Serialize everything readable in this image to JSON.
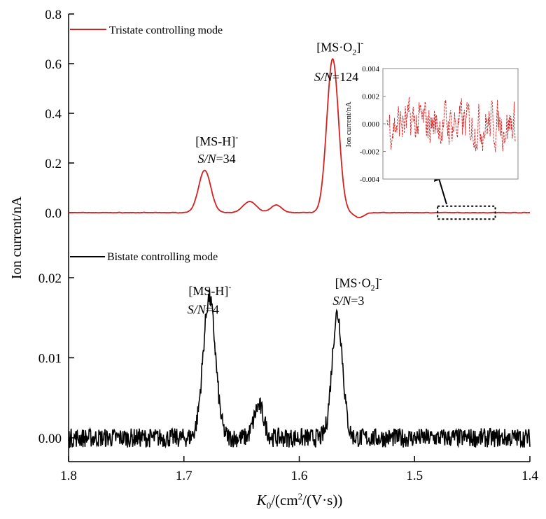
{
  "chart_data": {
    "type": "line",
    "x_axis": {
      "label": "K0/(cm2/(V·s))",
      "ticks": [
        "1.8",
        "1.7",
        "1.6",
        "1.5",
        "1.4"
      ],
      "tick_values": [
        1.8,
        1.7,
        1.6,
        1.5,
        1.4
      ],
      "xlim": [
        1.8,
        1.4
      ],
      "reversed": true
    },
    "y_label": "Ion current/nA",
    "grid": false,
    "panels": [
      {
        "id": "top",
        "legend": "Tristate controlling mode",
        "color": "#d42020",
        "ylim": [
          -0.02,
          0.8
        ],
        "y_ticks": [
          "0.0",
          "0.2",
          "0.4",
          "0.6",
          "0.8"
        ],
        "y_tick_values": [
          0.0,
          0.2,
          0.4,
          0.6,
          0.8
        ],
        "peaks": [
          {
            "x": 1.682,
            "y": 0.17,
            "width": 0.0075
          },
          {
            "x": 1.643,
            "y": 0.045,
            "width": 0.008
          },
          {
            "x": 1.62,
            "y": 0.03,
            "width": 0.007
          },
          {
            "x": 1.571,
            "y": 0.62,
            "width": 0.0072
          },
          {
            "x": 1.548,
            "y": -0.02,
            "width": 0.006
          }
        ],
        "noise": 0.002,
        "annotations": [
          {
            "text": "[MS-H]",
            "sup": "-",
            "x": 1.69,
            "y": 0.27
          },
          {
            "text_italic": "S/N",
            "text_rest": "=34",
            "x": 1.688,
            "y": 0.2
          },
          {
            "text": "[MS·O2]",
            "sup": "-",
            "x": 1.585,
            "y": 0.65
          },
          {
            "text_italic": "S/N",
            "text_rest": "=124",
            "x": 1.587,
            "y": 0.53
          }
        ]
      },
      {
        "id": "bottom",
        "legend": "Bistate controlling mode",
        "color": "#000000",
        "ylim": [
          -0.003,
          0.024
        ],
        "y_ticks": [
          "0.00",
          "0.01",
          "0.02"
        ],
        "y_tick_values": [
          0.0,
          0.01,
          0.02
        ],
        "peaks": [
          {
            "x": 1.678,
            "y": 0.0175,
            "width": 0.0075
          },
          {
            "x": 1.635,
            "y": 0.004,
            "width": 0.006
          },
          {
            "x": 1.567,
            "y": 0.0155,
            "width": 0.0065
          }
        ],
        "noise": 0.0012,
        "annotations": [
          {
            "text": "[MS-H]",
            "sup": "-",
            "x": 1.696,
            "y": 0.0178
          },
          {
            "text_italic": "S/N",
            "text_rest": "=4",
            "x": 1.697,
            "y": 0.0155
          },
          {
            "text": "[MS·O2]",
            "sup": "-",
            "x": 1.569,
            "y": 0.0188
          },
          {
            "text_italic": "S/N",
            "text_rest": "=3",
            "x": 1.571,
            "y": 0.0166
          }
        ]
      }
    ],
    "inset": {
      "ylabel": "Ion current/nA",
      "ylim": [
        -0.004,
        0.004
      ],
      "y_ticks": [
        "0.004",
        "0.002",
        "0.000",
        "-0.002",
        "-0.004"
      ],
      "y_tick_values": [
        0.004,
        0.002,
        0.0,
        -0.002,
        -0.004
      ],
      "color": "#d42020",
      "noise": 0.0011,
      "zoom_range_x": [
        1.48,
        1.43
      ],
      "zoom_range_y": [
        -0.012,
        0.012
      ]
    }
  }
}
